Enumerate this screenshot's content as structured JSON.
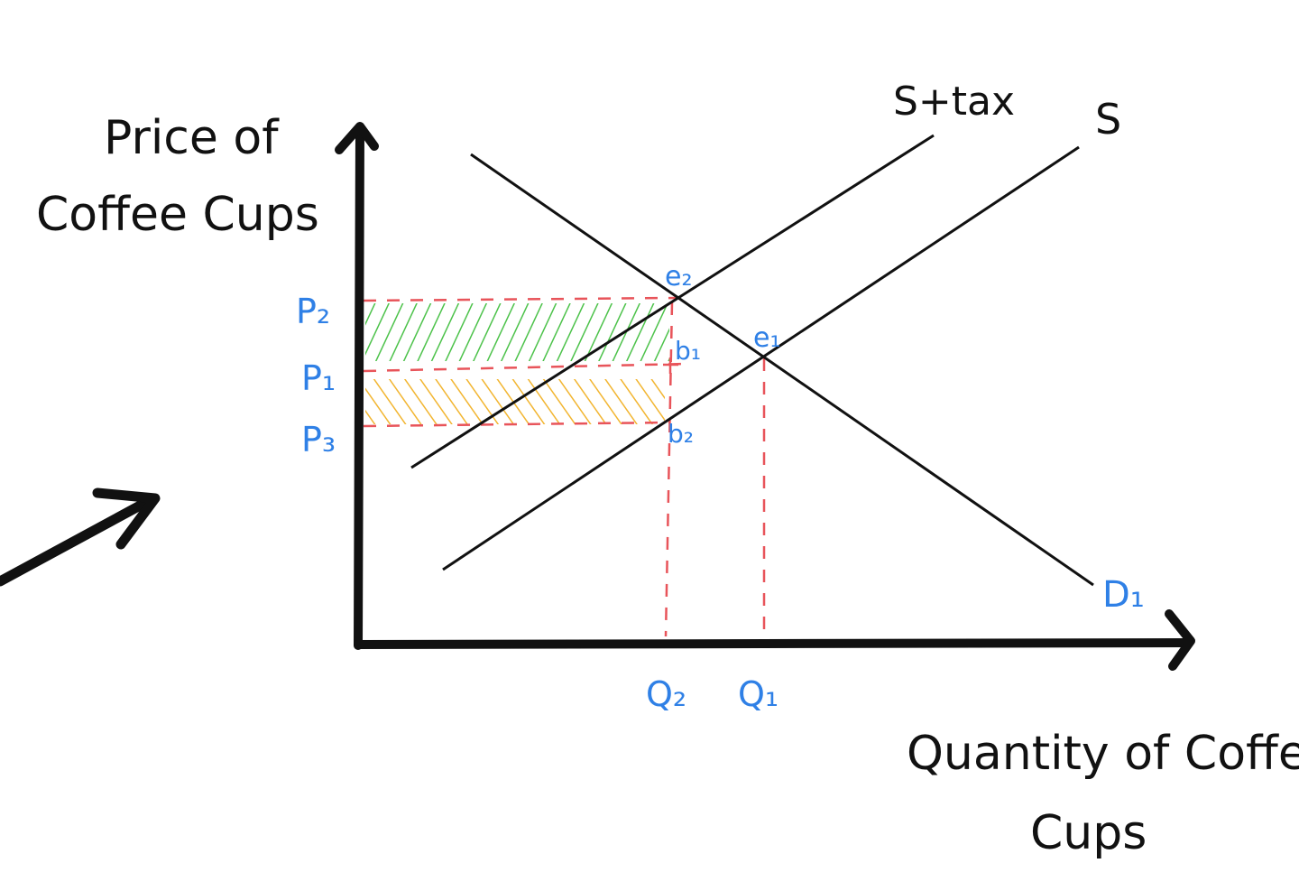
{
  "axes": {
    "y_label_line1": "Price of",
    "y_label_line2": "Coffee Cups",
    "x_label_line1": "Quantity of Coffee",
    "x_label_line2": "Cups"
  },
  "curves": {
    "supply_tax_label": "S+tax",
    "supply_label": "S",
    "demand_label": "D₁"
  },
  "points": {
    "e2": "e₂",
    "e1": "e₁",
    "b1": "b₁",
    "b2": "b₂"
  },
  "prices": {
    "p2": "P₂",
    "p1": "P₁",
    "p3": "P₃"
  },
  "quantities": {
    "q2": "Q₂",
    "q1": "Q₁"
  },
  "colors": {
    "ink": "#111111",
    "label_blue": "#2f80e6",
    "dashed_red": "#e8545a",
    "consumer_burden_green": "#4cc24a",
    "producer_burden_orange": "#f2b530"
  }
}
